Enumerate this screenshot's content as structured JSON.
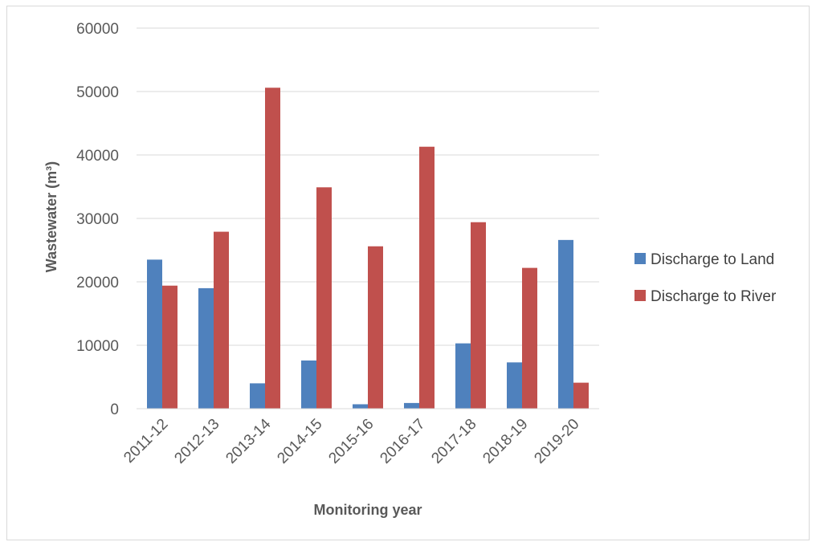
{
  "chart_data": {
    "type": "bar",
    "title": "",
    "xlabel": "Monitoring year",
    "ylabel": "Wastewater (m³)",
    "ylim": [
      0,
      60000
    ],
    "yticks": [
      0,
      10000,
      20000,
      30000,
      40000,
      50000,
      60000
    ],
    "ytick_labels": [
      "0",
      "10000",
      "20000",
      "30000",
      "40000",
      "50000",
      "60000"
    ],
    "grid": true,
    "legend_position": "right",
    "categories": [
      "2011-12",
      "2012-13",
      "2013-14",
      "2014-15",
      "2015-16",
      "2016-17",
      "2017-18",
      "2018-19",
      "2019-20"
    ],
    "series": [
      {
        "name": "Discharge to Land",
        "color": "#4f81bd",
        "values": [
          23500,
          19000,
          4000,
          7600,
          700,
          900,
          10300,
          7300,
          26600
        ]
      },
      {
        "name": "Discharge to River",
        "color": "#c0504d",
        "values": [
          19400,
          27900,
          50600,
          34900,
          25600,
          41300,
          29400,
          22200,
          4100
        ]
      }
    ]
  }
}
